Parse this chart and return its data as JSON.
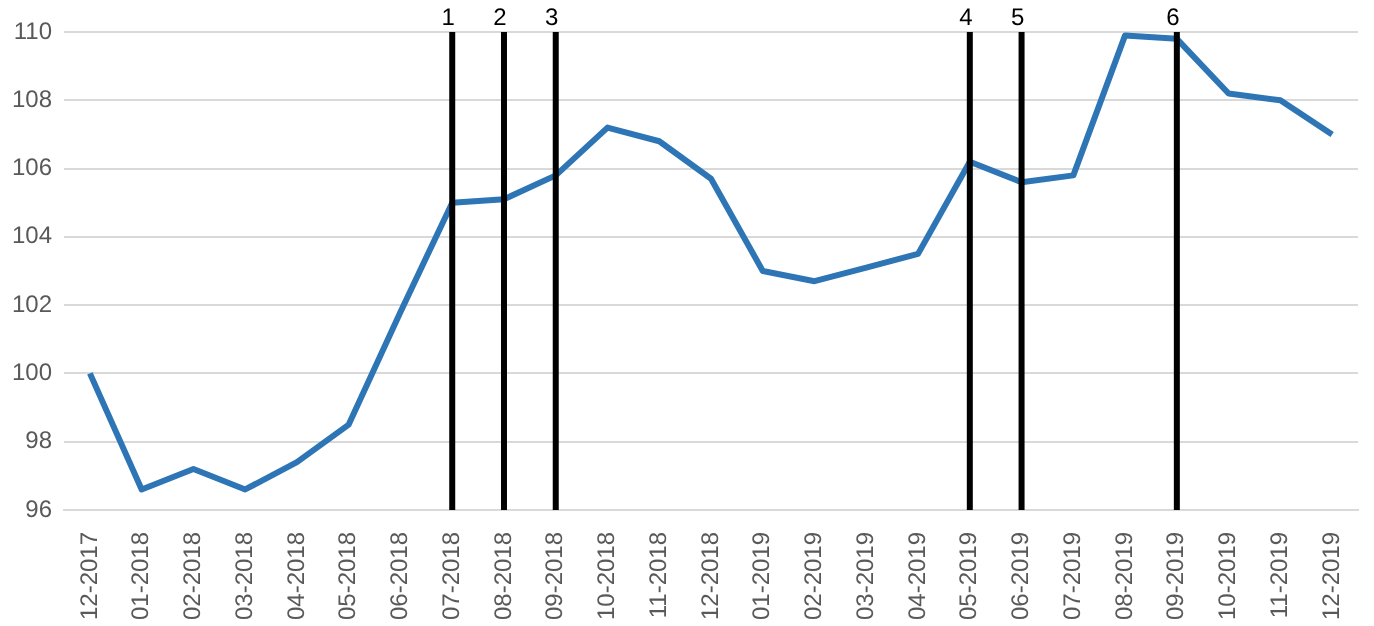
{
  "chart_data": {
    "type": "line",
    "categories": [
      "12-2017",
      "01-2018",
      "02-2018",
      "03-2018",
      "04-2018",
      "05-2018",
      "06-2018",
      "07-2018",
      "08-2018",
      "09-2018",
      "10-2018",
      "11-2018",
      "12-2018",
      "01-2019",
      "02-2019",
      "03-2019",
      "04-2019",
      "05-2019",
      "06-2019",
      "07-2019",
      "08-2019",
      "09-2019",
      "10-2019",
      "11-2019",
      "12-2019"
    ],
    "series": [
      {
        "color": "#2e75b6",
        "values": [
          100,
          96.6,
          97.2,
          96.6,
          97.4,
          98.5,
          101.8,
          105.0,
          105.1,
          105.8,
          107.2,
          106.8,
          105.7,
          103.0,
          102.7,
          103.1,
          103.5,
          106.2,
          105.6,
          105.8,
          109.9,
          109.8,
          108.2,
          108.0,
          107.0
        ]
      }
    ],
    "ylim": [
      96,
      110
    ],
    "yticks": [
      96,
      98,
      100,
      102,
      104,
      106,
      108,
      110
    ],
    "grid": "y",
    "legend": false,
    "marker": "none",
    "line_style": "solid",
    "ref_lines": [
      {
        "axis": "x",
        "value": "07-2018",
        "label": "1",
        "color": "#000000"
      },
      {
        "axis": "x",
        "value": "08-2018",
        "label": "2",
        "color": "#000000"
      },
      {
        "axis": "x",
        "value": "09-2018",
        "label": "3",
        "color": "#000000"
      },
      {
        "axis": "x",
        "value": "05-2019",
        "label": "4",
        "color": "#000000"
      },
      {
        "axis": "x",
        "value": "06-2019",
        "label": "5",
        "color": "#000000"
      },
      {
        "axis": "x",
        "value": "09-2019",
        "label": "6",
        "color": "#000000"
      }
    ]
  }
}
